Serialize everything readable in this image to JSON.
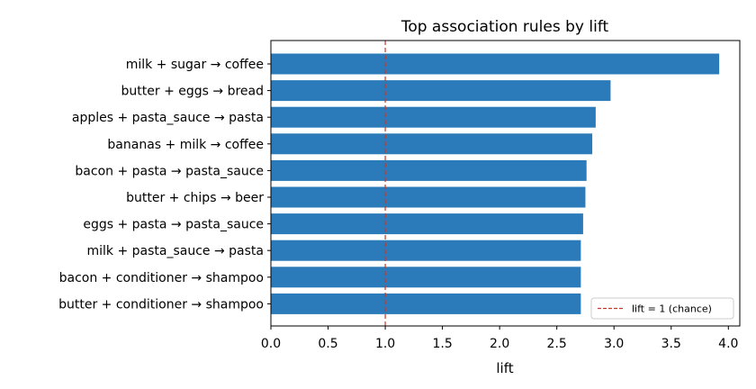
{
  "chart_data": {
    "type": "bar",
    "orientation": "horizontal",
    "title": "Top association rules by lift",
    "xlabel": "lift",
    "ylabel": "",
    "xlim": [
      0,
      4.1
    ],
    "xticks": [
      "0.0",
      "0.5",
      "1.0",
      "1.5",
      "2.0",
      "2.5",
      "3.0",
      "3.5",
      "4.0"
    ],
    "categories": [
      "milk + sugar → coffee",
      "butter + eggs → bread",
      "apples + pasta_sauce → pasta",
      "bananas + milk → coffee",
      "bacon + pasta → pasta_sauce",
      "butter + chips → beer",
      "eggs + pasta → pasta_sauce",
      "milk + pasta_sauce → pasta",
      "bacon + conditioner → shampoo",
      "butter + conditioner → shampoo"
    ],
    "values": [
      3.92,
      2.97,
      2.84,
      2.81,
      2.76,
      2.75,
      2.73,
      2.71,
      2.71,
      2.71
    ],
    "bar_color": "#2b7bba",
    "reference_line": {
      "x": 1.0,
      "label": "lift = 1 (chance)",
      "color": "#c0392b",
      "style": "dashed"
    },
    "legend_position": "lower-right",
    "grid": false
  }
}
